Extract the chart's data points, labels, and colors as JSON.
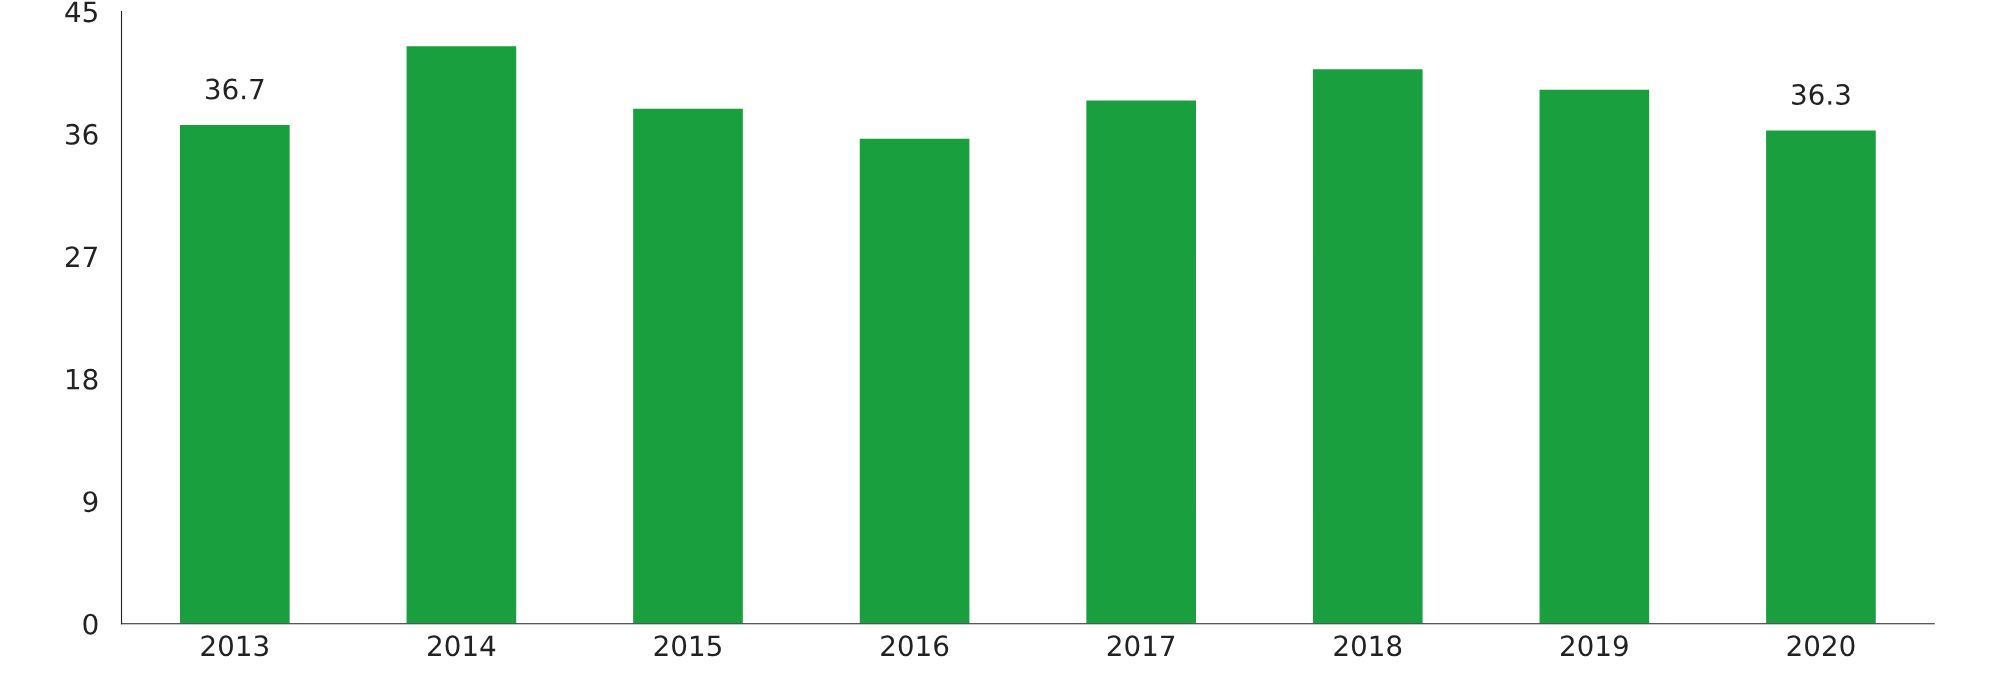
{
  "chart_data": {
    "type": "bar",
    "categories": [
      "2013",
      "2014",
      "2015",
      "2016",
      "2017",
      "2018",
      "2019",
      "2020"
    ],
    "values": [
      36.7,
      42.5,
      37.9,
      35.7,
      38.5,
      40.8,
      39.3,
      36.3
    ],
    "value_labels": [
      "36.7",
      null,
      null,
      null,
      null,
      null,
      null,
      "36.3"
    ],
    "color": "#1a9f3f",
    "ylim": [
      0,
      45
    ],
    "yticks": [
      0,
      9,
      18,
      27,
      36,
      45
    ],
    "grid": false
  }
}
